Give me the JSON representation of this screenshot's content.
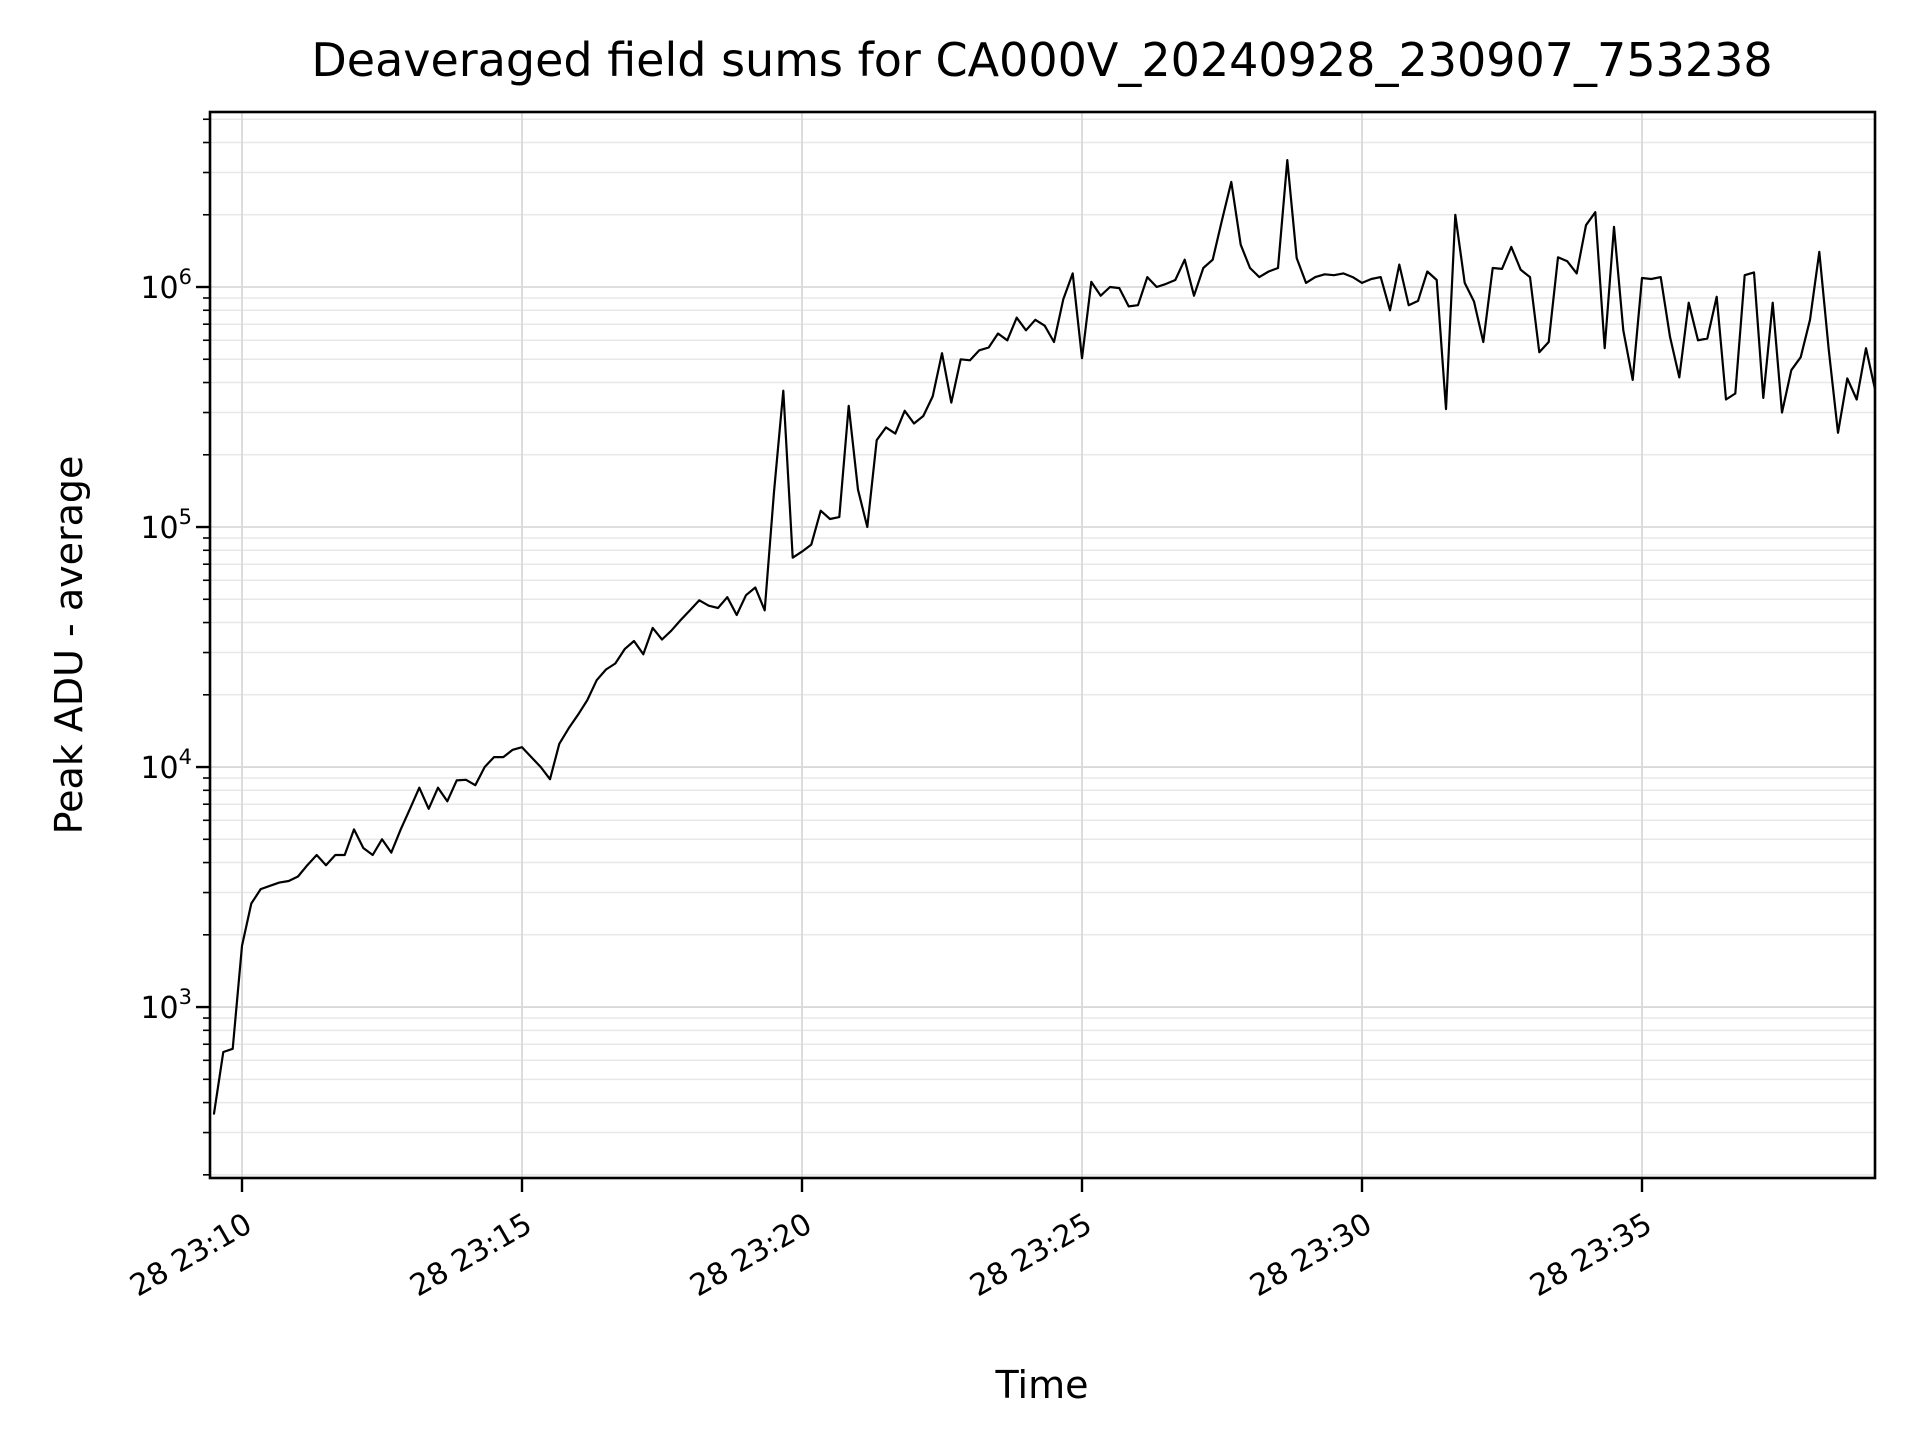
{
  "figure": {
    "title": "Deaveraged field sums for CA000V_20240928_230907_753238",
    "xlabel": "Time",
    "ylabel": "Peak ADU - average"
  },
  "style": {
    "background": "#ffffff",
    "line_color": "#000000",
    "spine_color": "#000000",
    "grid_major_color": "#d9d9d9",
    "grid_minor_color": "#e8e8e8",
    "tick_color": "#000000"
  },
  "chart_data": {
    "type": "line",
    "title": "Deaveraged field sums for CA000V_20240928_230907_753238",
    "xlabel": "Time",
    "ylabel": "Peak ADU - average",
    "grid": "on-both-major-and-minor",
    "legend": "none",
    "y_scale": "log",
    "ylim": [
      194,
      5360000
    ],
    "y_axis": {
      "major_tick_values": [
        1000,
        10000,
        100000,
        1000000
      ],
      "major_tick_labels": [
        "10^3",
        "10^4",
        "10^5",
        "10^6"
      ],
      "major_tick_exponents": [
        3,
        4,
        5,
        6
      ],
      "superscript_base": "10"
    },
    "x_axis": {
      "tick_labels": [
        "28 23:10",
        "28 23:15",
        "28 23:20",
        "28 23:25",
        "28 23:30",
        "28 23:35"
      ],
      "tick_minutes_after_23h": [
        10,
        15,
        20,
        25,
        30,
        35
      ],
      "xlim_minutes_after_23h": [
        9.43,
        39.16
      ],
      "label_rotation_deg": 30
    },
    "series": [
      {
        "name": "Peak ADU - average",
        "start_time": "28 23:09:30",
        "step_seconds": 10,
        "start_minute_after_23h": 9.5,
        "values": [
          360,
          650,
          670,
          1800,
          2700,
          3100,
          3200,
          3300,
          3350,
          3500,
          3900,
          4300,
          3900,
          4300,
          4300,
          5500,
          4600,
          4300,
          5000,
          4400,
          5500,
          6700,
          8200,
          6700,
          8200,
          7200,
          8800,
          8850,
          8400,
          10000,
          11000,
          11000,
          11800,
          12100,
          11000,
          10000,
          8900,
          12500,
          14500,
          16500,
          19000,
          23000,
          25500,
          27000,
          31000,
          33500,
          29500,
          38000,
          34000,
          37000,
          41000,
          45000,
          49500,
          47000,
          46000,
          51000,
          43000,
          52000,
          56000,
          45000,
          140000,
          370000,
          74500,
          79000,
          84500,
          117000,
          108000,
          110000,
          320000,
          143000,
          100000,
          230000,
          260000,
          245000,
          305000,
          270000,
          290000,
          350000,
          530000,
          330000,
          500000,
          495000,
          545000,
          560000,
          640000,
          600000,
          745000,
          660000,
          730000,
          690000,
          590000,
          890000,
          1140000,
          505000,
          1050000,
          920000,
          1000000,
          990000,
          830000,
          840000,
          1100000,
          1000000,
          1030000,
          1070000,
          1300000,
          920000,
          1200000,
          1300000,
          1900000,
          2740000,
          1500000,
          1200000,
          1100000,
          1160000,
          1200000,
          3380000,
          1320000,
          1040000,
          1100000,
          1130000,
          1120000,
          1140000,
          1100000,
          1040000,
          1080000,
          1100000,
          800000,
          1240000,
          840000,
          875000,
          1160000,
          1070000,
          310000,
          2000000,
          1040000,
          870000,
          590000,
          1200000,
          1190000,
          1470000,
          1180000,
          1100000,
          535000,
          590000,
          1330000,
          1280000,
          1140000,
          1810000,
          2050000,
          556000,
          1780000,
          660000,
          410000,
          1090000,
          1080000,
          1100000,
          620000,
          420000,
          860000,
          600000,
          610000,
          910000,
          340000,
          360000,
          1120000,
          1150000,
          345000,
          860000,
          300000,
          450000,
          510000,
          730000,
          1400000,
          550000,
          247000,
          416000,
          340000,
          556000,
          370000
        ]
      }
    ]
  }
}
